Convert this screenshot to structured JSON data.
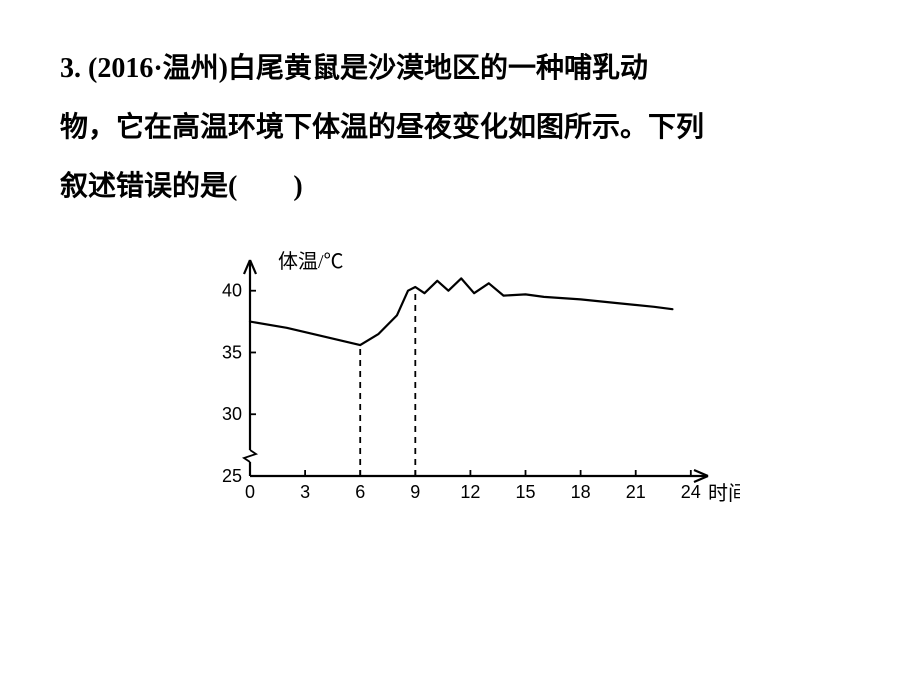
{
  "question": {
    "number": "3.",
    "source": "(2016·温州)",
    "line1": "白尾黄鼠是沙漠地区的一种哺乳动",
    "line2": "物，它在高温环境下体温的昼夜变化如图所示。下列",
    "line3": "叙述错误的是(　　)"
  },
  "chart": {
    "type": "line",
    "y_axis_label": "体温/℃",
    "x_axis_label": "时间/时",
    "y_ticks": [
      25,
      30,
      35,
      40
    ],
    "x_ticks": [
      0,
      3,
      6,
      9,
      12,
      15,
      18,
      21,
      24
    ],
    "dashed_x": [
      6,
      9
    ],
    "line_points": [
      {
        "x": 0,
        "y": 37.5
      },
      {
        "x": 2,
        "y": 37.0
      },
      {
        "x": 4,
        "y": 36.3
      },
      {
        "x": 6,
        "y": 35.6
      },
      {
        "x": 7,
        "y": 36.5
      },
      {
        "x": 8,
        "y": 38.0
      },
      {
        "x": 8.6,
        "y": 40.0
      },
      {
        "x": 9,
        "y": 40.3
      },
      {
        "x": 9.5,
        "y": 39.8
      },
      {
        "x": 10.2,
        "y": 40.8
      },
      {
        "x": 10.8,
        "y": 40.0
      },
      {
        "x": 11.5,
        "y": 41.0
      },
      {
        "x": 12.2,
        "y": 39.8
      },
      {
        "x": 13.0,
        "y": 40.6
      },
      {
        "x": 13.8,
        "y": 39.6
      },
      {
        "x": 15,
        "y": 39.7
      },
      {
        "x": 16,
        "y": 39.5
      },
      {
        "x": 18,
        "y": 39.3
      },
      {
        "x": 20,
        "y": 39.0
      },
      {
        "x": 22,
        "y": 38.7
      },
      {
        "x": 23,
        "y": 38.5
      }
    ],
    "axis_color": "#000000",
    "line_color": "#000000",
    "text_color": "#000000",
    "background": "#ffffff",
    "stroke_width": 2.2,
    "tick_fontsize": 18,
    "label_fontsize": 20
  }
}
